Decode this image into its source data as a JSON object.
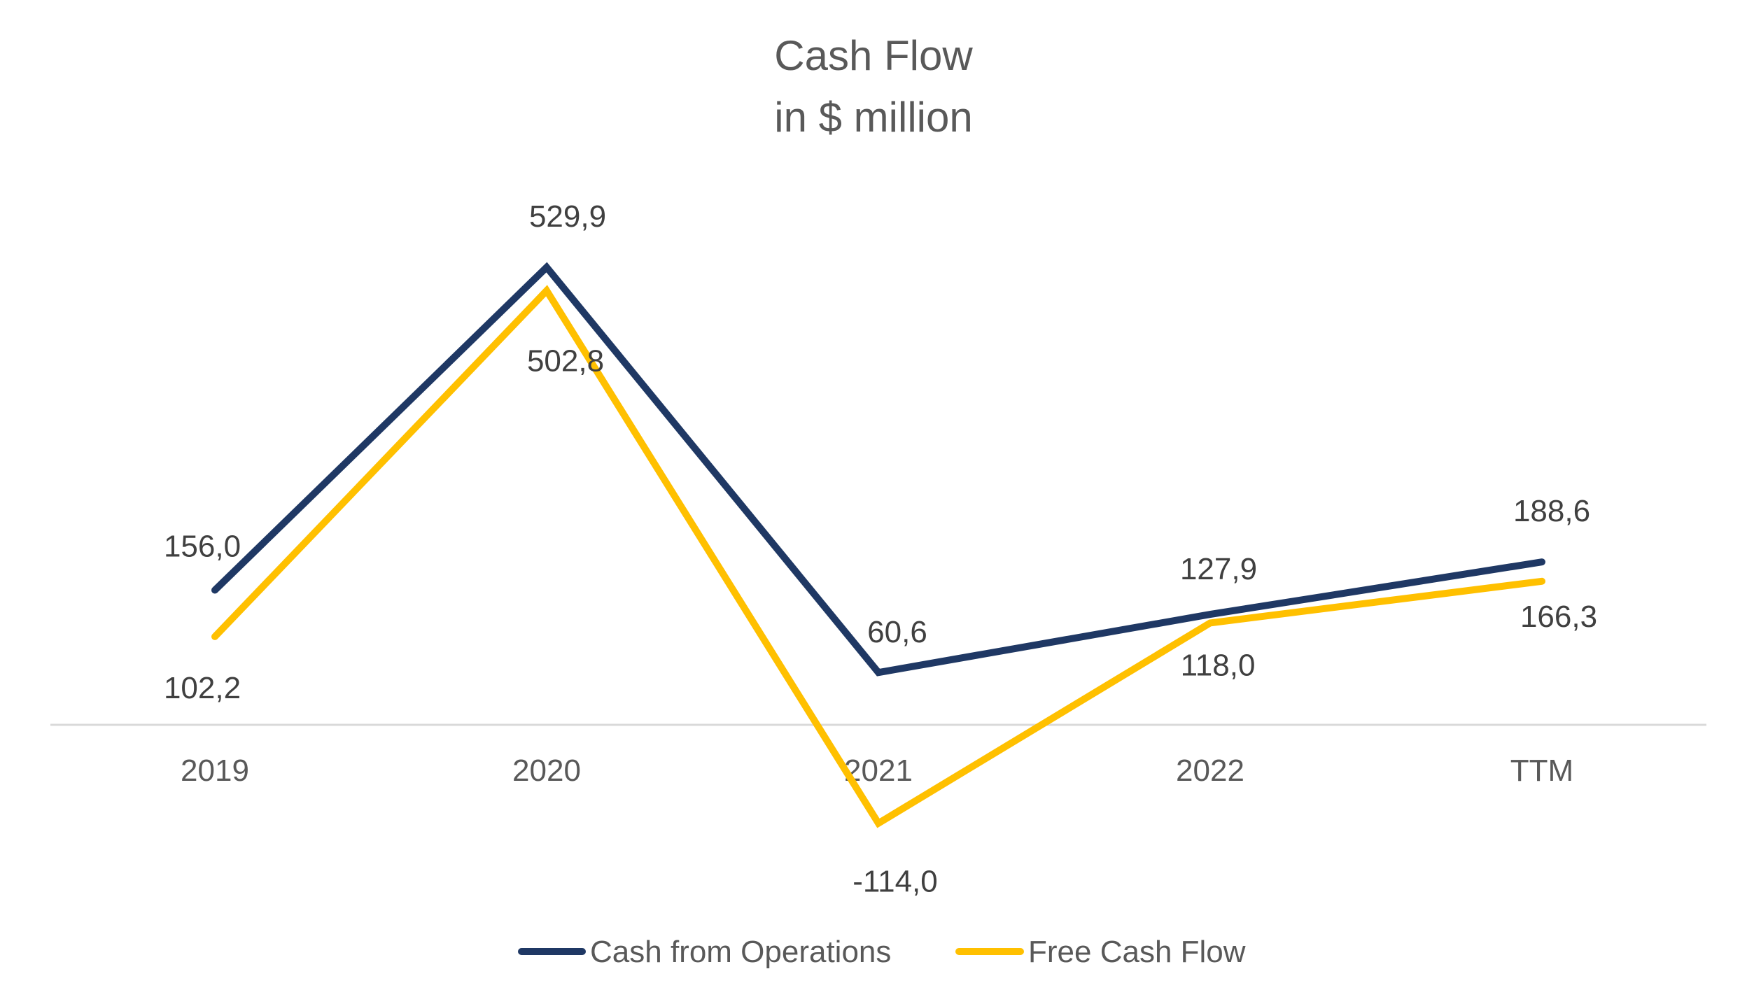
{
  "chart_data": {
    "type": "line",
    "title": "Cash Flow",
    "subtitle": "in $ million",
    "categories": [
      "2019",
      "2020",
      "2021",
      "2022",
      "TTM"
    ],
    "series": [
      {
        "name": "Cash from Operations",
        "color": "#1F3864",
        "values": [
          156.0,
          529.9,
          60.6,
          127.9,
          188.6
        ],
        "labels": [
          "156,0",
          "529,9",
          "60,6",
          "127,9",
          "188,6"
        ]
      },
      {
        "name": "Free Cash Flow",
        "color": "#FFC000",
        "values": [
          102.2,
          502.8,
          -114.0,
          118.0,
          166.3
        ],
        "labels": [
          "102,2",
          "502,8",
          "-114,0",
          "118,0",
          "166,3"
        ]
      }
    ],
    "ylim": [
      -150,
      600
    ],
    "grid": false,
    "legend": "bottom",
    "axis_color": "#D9D9D9"
  }
}
